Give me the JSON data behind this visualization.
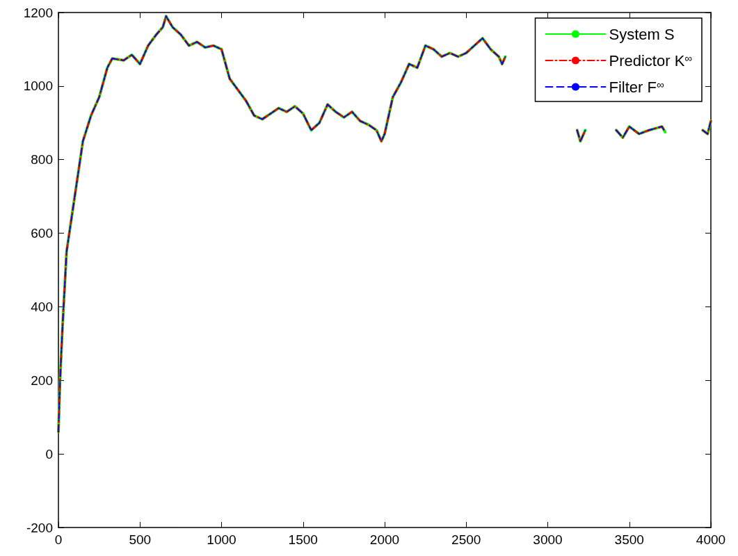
{
  "chart_data": {
    "type": "line",
    "x": [
      0,
      10,
      25,
      50,
      100,
      150,
      200,
      250,
      300,
      330,
      400,
      450,
      500,
      550,
      600,
      640,
      660,
      700,
      750,
      800,
      850,
      900,
      950,
      1000,
      1050,
      1100,
      1150,
      1200,
      1250,
      1300,
      1350,
      1400,
      1450,
      1500,
      1550,
      1600,
      1650,
      1700,
      1750,
      1800,
      1850,
      1900,
      1950,
      1980,
      2000,
      2050,
      2100,
      2150,
      2200,
      2250,
      2300,
      2350,
      2400,
      2450,
      2500,
      2550,
      2600,
      2650,
      2700,
      2720,
      2740,
      2900,
      3180,
      3200,
      3230,
      3300,
      3420,
      3460,
      3500,
      3560,
      3620,
      3700,
      3720,
      3800,
      3950,
      3980,
      4000
    ],
    "series": [
      {
        "name": "System S",
        "color": "#00ff00",
        "line_style": "solid",
        "values": [
          60,
          200,
          345,
          550,
          700,
          850,
          920,
          970,
          1050,
          1075,
          1070,
          1085,
          1060,
          1110,
          1140,
          1160,
          1190,
          1160,
          1140,
          1110,
          1120,
          1105,
          1110,
          1100,
          1020,
          990,
          960,
          920,
          910,
          925,
          940,
          930,
          945,
          925,
          880,
          900,
          950,
          930,
          915,
          930,
          905,
          895,
          880,
          850,
          870,
          970,
          1010,
          1060,
          1050,
          1110,
          1100,
          1080,
          1090,
          1080,
          1090,
          1110,
          1130,
          1100,
          1080,
          1060,
          1080,
          null,
          880,
          850,
          880,
          null,
          880,
          860,
          890,
          870,
          880,
          890,
          875,
          null,
          880,
          870,
          905
        ]
      },
      {
        "name": "Predictor K$^{∞}$",
        "color": "#ff0000",
        "line_style": "dashdot",
        "values": [
          60,
          200,
          345,
          550,
          700,
          850,
          920,
          970,
          1050,
          1075,
          1070,
          1085,
          1060,
          1110,
          1140,
          1160,
          1190,
          1160,
          1140,
          1110,
          1120,
          1105,
          1110,
          1100,
          1020,
          990,
          960,
          920,
          910,
          925,
          940,
          930,
          945,
          925,
          880,
          900,
          950,
          930,
          915,
          930,
          905,
          895,
          880,
          850,
          870,
          970,
          1010,
          1060,
          1050,
          1110,
          1100,
          1080,
          1090,
          1080,
          1090,
          1110,
          1130,
          1100,
          1080,
          1060,
          1080,
          null,
          880,
          850,
          880,
          null,
          880,
          860,
          890,
          870,
          880,
          890,
          875,
          null,
          880,
          870,
          905
        ]
      },
      {
        "name": "Filter F$^{∞}$",
        "color": "#0000ff",
        "line_style": "dashed",
        "values": [
          60,
          200,
          345,
          550,
          700,
          850,
          920,
          970,
          1050,
          1075,
          1070,
          1085,
          1060,
          1110,
          1140,
          1160,
          1190,
          1160,
          1140,
          1110,
          1120,
          1105,
          1110,
          1100,
          1020,
          990,
          960,
          920,
          910,
          925,
          940,
          930,
          945,
          925,
          880,
          900,
          950,
          930,
          915,
          930,
          905,
          895,
          880,
          850,
          870,
          970,
          1010,
          1060,
          1050,
          1110,
          1100,
          1080,
          1090,
          1080,
          1090,
          1110,
          1130,
          1100,
          1080,
          1060,
          1080,
          null,
          880,
          850,
          880,
          null,
          880,
          860,
          890,
          870,
          880,
          890,
          875,
          null,
          880,
          870,
          905
        ]
      }
    ],
    "xlim": [
      0,
      4000
    ],
    "xticks": [
      0,
      500,
      1000,
      1500,
      2000,
      2500,
      3000,
      3500,
      4000
    ],
    "ylim": [
      -200,
      1200
    ],
    "yticks": [
      -200,
      0,
      200,
      400,
      600,
      800,
      1000,
      1200
    ],
    "grid": false,
    "legend": "top right",
    "marker": "none"
  }
}
